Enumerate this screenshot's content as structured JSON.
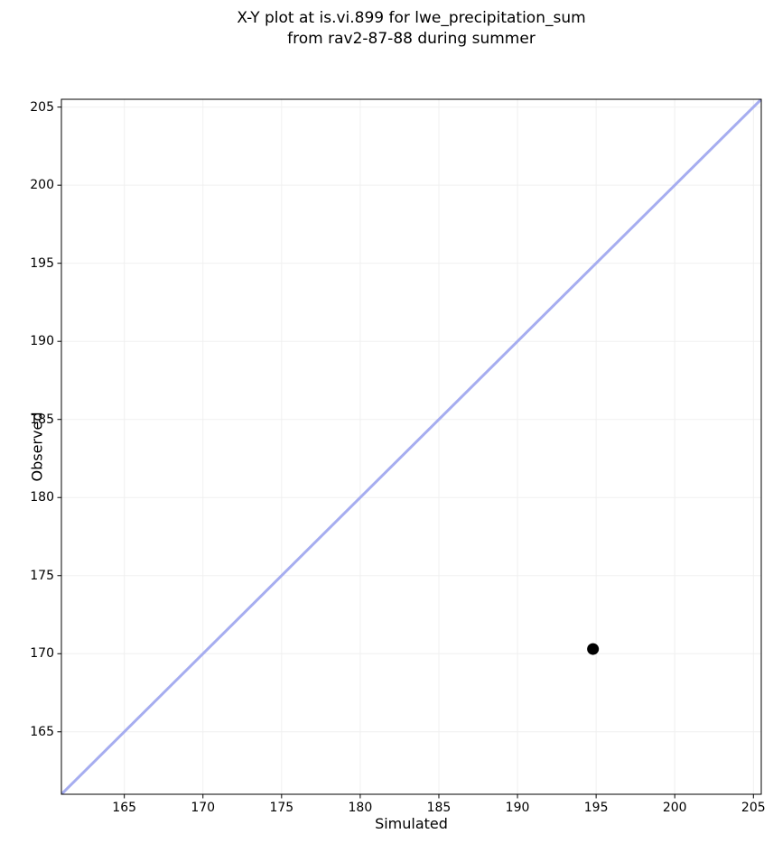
{
  "title": {
    "line1": "X-Y plot at is.vi.899 for lwe_precipitation_sum",
    "line2": "from rav2-87-88 during summer"
  },
  "chart_data": {
    "type": "scatter",
    "title": "X-Y plot at is.vi.899 for lwe_precipitation_sum from rav2-87-88 during summer",
    "xlabel": "Simulated",
    "ylabel": "Observed",
    "xlim": [
      161,
      205.5
    ],
    "ylim": [
      161,
      205.5
    ],
    "xticks": [
      165,
      170,
      175,
      180,
      185,
      190,
      195,
      200,
      205
    ],
    "yticks": [
      165,
      170,
      175,
      180,
      185,
      190,
      195,
      200,
      205
    ],
    "grid": true,
    "legend": false,
    "points": [
      {
        "x": 194.8,
        "y": 170.3
      }
    ],
    "identity_line": {
      "x1": 161,
      "y1": 161,
      "x2": 205.5,
      "y2": 205.5
    },
    "styles": {
      "line_color": "#a6adf0",
      "line_width": 3,
      "point_color": "#000000",
      "point_radius": 6.5,
      "grid_color": "#f0f0f0",
      "frame_color": "#000000",
      "tick_color": "#000000"
    }
  }
}
